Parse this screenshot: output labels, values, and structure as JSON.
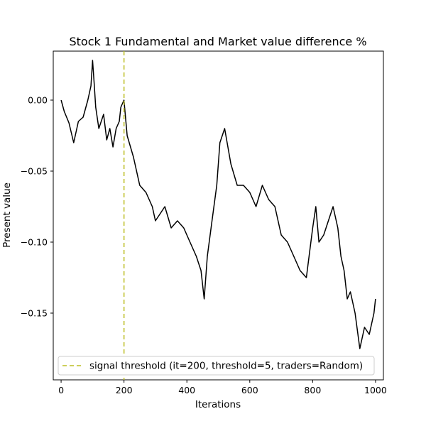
{
  "chart_data": {
    "type": "line",
    "title": "Stock 1 Fundamental and Market value difference %",
    "xlabel": "Iterations",
    "ylabel": "Present value",
    "xlim": [
      -25,
      1025
    ],
    "ylim": [
      -0.197,
      0.0345
    ],
    "x_ticks": [
      0,
      200,
      400,
      600,
      800,
      1000
    ],
    "x_tick_labels": [
      "0",
      "200",
      "400",
      "600",
      "800",
      "1000"
    ],
    "y_ticks": [
      0.0,
      -0.05,
      -0.1,
      -0.15
    ],
    "y_tick_labels": [
      "0.00",
      "−0.05",
      "−0.10",
      "−0.15"
    ],
    "grid": false,
    "legend_position": "lower center",
    "colors": {
      "series": "#000000",
      "threshold": "#bcbd22"
    },
    "series": [
      {
        "x": [
          0,
          10,
          25,
          40,
          55,
          70,
          85,
          95,
          100,
          105,
          110,
          120,
          135,
          145,
          155,
          165,
          175,
          185,
          190,
          200,
          210,
          230,
          250,
          270,
          290,
          300,
          330,
          350,
          370,
          390,
          410,
          430,
          445,
          455,
          465,
          480,
          495,
          505,
          520,
          540,
          560,
          580,
          600,
          620,
          640,
          660,
          680,
          700,
          720,
          740,
          760,
          780,
          800,
          810,
          820,
          835,
          850,
          865,
          880,
          890,
          900,
          910,
          920,
          935,
          950,
          965,
          980,
          995,
          1000
        ],
        "y": [
          0.0,
          -0.008,
          -0.016,
          -0.03,
          -0.015,
          -0.012,
          0.0,
          0.01,
          0.028,
          0.012,
          -0.005,
          -0.02,
          -0.01,
          -0.028,
          -0.02,
          -0.033,
          -0.02,
          -0.015,
          -0.005,
          0.0,
          -0.025,
          -0.04,
          -0.06,
          -0.065,
          -0.075,
          -0.085,
          -0.075,
          -0.09,
          -0.085,
          -0.09,
          -0.1,
          -0.11,
          -0.12,
          -0.14,
          -0.11,
          -0.085,
          -0.06,
          -0.03,
          -0.02,
          -0.045,
          -0.06,
          -0.06,
          -0.065,
          -0.075,
          -0.06,
          -0.07,
          -0.075,
          -0.095,
          -0.1,
          -0.11,
          -0.12,
          -0.125,
          -0.09,
          -0.075,
          -0.1,
          -0.095,
          -0.085,
          -0.075,
          -0.09,
          -0.11,
          -0.12,
          -0.14,
          -0.135,
          -0.15,
          -0.175,
          -0.16,
          -0.165,
          -0.15,
          -0.14
        ]
      }
    ],
    "threshold_line": {
      "x": 200,
      "label": "signal threshold (it=200, threshold=5, traders=Random)"
    }
  }
}
